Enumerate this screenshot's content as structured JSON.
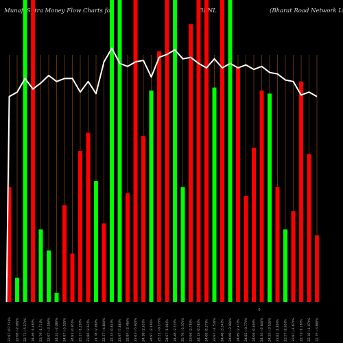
{
  "header": {
    "title": "MunafaSutra  Money Flow  Charts for",
    "symbol": "BRNL",
    "company": "(Bharat Road Network Ltd) Mi"
  },
  "colors": {
    "background": "#000000",
    "up": "#00ff00",
    "down": "#ff0000",
    "gridline": "#8b4513",
    "line": "#ffffff"
  },
  "chart_data": {
    "type": "bar",
    "ylim": [
      0,
      100
    ],
    "categories": [
      "25 Fri Oct 2024",
      "28 Mon Oct 2024",
      "29 Tue Oct 2024",
      "30 Wed Oct 2024",
      "31 Thu Oct 2024",
      "01 Fri Nov 2024",
      "04 Mon Nov 2024",
      "05 Tue Nov 2024",
      "06 Wed Nov 2024",
      "07 Thu Nov 2024",
      "08 Fri Nov 2024",
      "11 Mon Nov 2024",
      "12 Tue Nov 2024",
      "13 Wed Nov 2024",
      "14 Thu Nov 2024",
      "18 Mon Nov 2024",
      "19 Tue Nov 2024",
      "21 Thu Nov 2024",
      "22 Fri Nov 2024",
      "25 Mon Nov 2024",
      "26 Tue Nov 2024",
      "27 Wed Nov 2024",
      "28 Thu Nov 2024",
      "29 Fri Nov 2024",
      "02 Mon Dec 2024",
      "03 Tue Dec 2024",
      "04 Wed Dec 2024",
      "05 Thu Dec 2024",
      "06 Fri Dec 2024",
      "09 Mon Dec 2024",
      "10 Tue Dec 2024",
      "11 Wed Dec 2024",
      "12 Thu Dec 2024",
      "13 Fri Dec 2024",
      "16 Mon Dec 2024",
      "17 Tue Dec 2024",
      "18 Wed Dec 2024",
      "19 Thu Dec 2024",
      "20 Fri Dec 2024",
      "23 Mon Dec 2024"
    ],
    "x_tick_labels": [
      "23.87 (07.52)%",
      "22.08 (-2.06)%",
      "22.73 (-5.17)%",
      "24.46 (1.48)%",
      "23.79 (1.71)%",
      "23.97 (-3.16)%",
      "24.24 (-2.08)%",
      "24.97 (-5.52)%",
      "24.81 (0.95)%",
      "23.17 (1.29)%",
      "23.86 (2.63)%",
      "21.78 (2.98)%",
      "22.37 (-4.84)%",
      "22.33 (0.84)%",
      "23.97 (7.88)%",
      "22.84 (-2.46)%",
      "23.63 (-5.92)%",
      "24.18 (2.63)%",
      "24.97 (2.49)%",
      "23.31 (-6.17)%",
      "24.97 (1.06)%",
      "24.48 (2.53)%",
      "25.79 (-2.37)%",
      "23.96 (2.78)%",
      "24.13 (0.58)%",
      "24.09 (0.37)%",
      "23.97 (-1.53)%",
      "24.48 (3.34)%",
      "24.08 (-3.99)%",
      "24.89 (2.47)%",
      "24.82 (-0.77)%",
      "24.06 (0.69)%",
      "24.34 (-2.64)%",
      "24.55 (-3.53)%",
      "23.81 (1.80)%",
      "23.57 (2.65)%",
      "23.87 (-1.67)%",
      "22.72 (1.18)%",
      "22.18 (-1.97)%",
      "22.35 (-3.88)%"
    ],
    "series": [
      {
        "colors": [
          "down",
          "up",
          "up",
          "down",
          "up",
          "up",
          "up",
          "down",
          "down",
          "down",
          "down",
          "up",
          "down",
          "up",
          "up",
          "down",
          "down",
          "down",
          "up",
          "down",
          "down",
          "up",
          "up",
          "down",
          "down",
          "down",
          "up",
          "down",
          "up",
          "down",
          "down",
          "down",
          "down",
          "up",
          "down",
          "up",
          "down",
          "down",
          "down",
          "down"
        ],
        "values": [
          38,
          8,
          100,
          100,
          24,
          17,
          3,
          32,
          16,
          50,
          56,
          40,
          26,
          100,
          100,
          36,
          100,
          55,
          70,
          83,
          100,
          100,
          38,
          92,
          100,
          100,
          71,
          100,
          100,
          78,
          35,
          51,
          70,
          69,
          38,
          24,
          30,
          73,
          49,
          22
        ]
      },
      {
        "values": [
          68,
          69.5,
          74,
          70.5,
          72.5,
          75,
          73,
          74,
          74,
          69.5,
          73,
          69,
          79.5,
          84,
          79,
          78,
          79.5,
          80,
          74.5,
          81,
          82,
          83.5,
          80.5,
          81,
          79,
          77.5,
          80.5,
          77.5,
          79,
          77.5,
          78.5,
          77,
          78,
          76,
          75.5,
          73.5,
          73,
          68.5,
          69.5,
          68
        ]
      }
    ],
    "center_mark": "0"
  }
}
